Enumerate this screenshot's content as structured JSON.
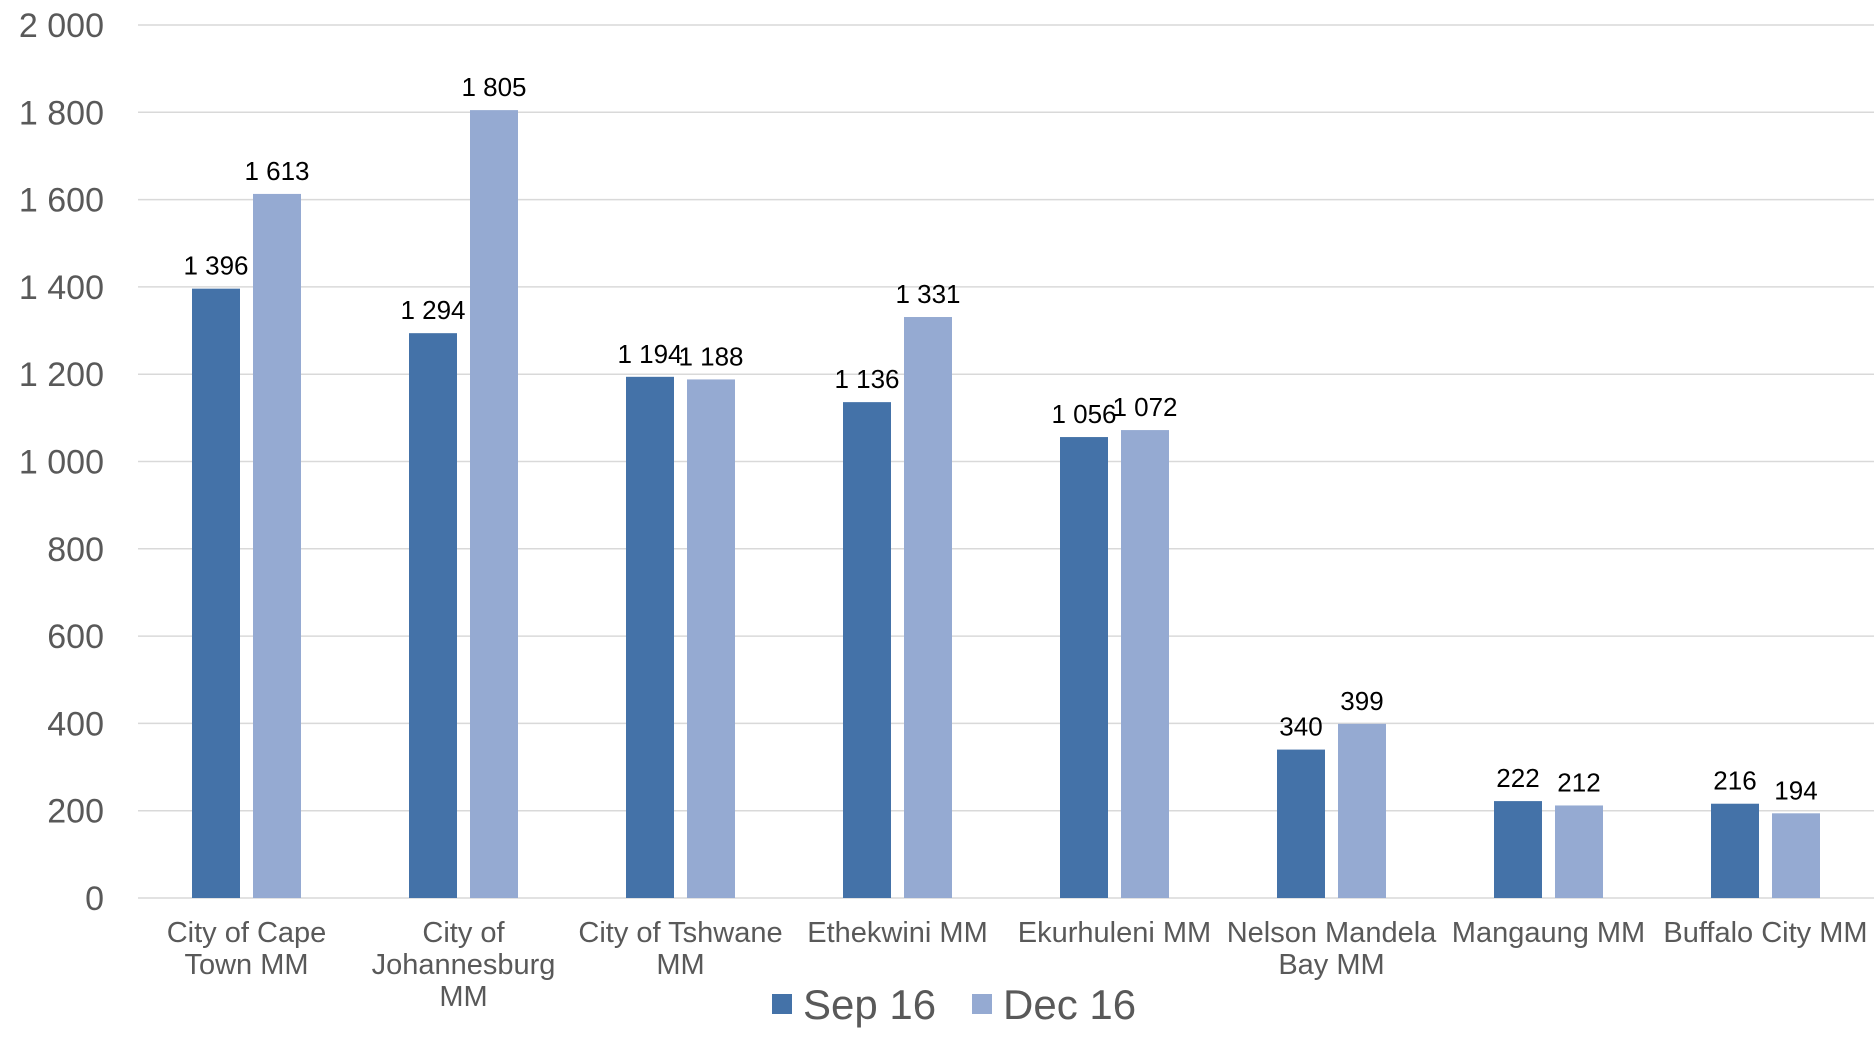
{
  "chart_data": {
    "type": "bar",
    "title": "",
    "xlabel": "",
    "ylabel": "",
    "ylim": [
      0,
      2000
    ],
    "yticks": [
      0,
      200,
      400,
      600,
      800,
      1000,
      1200,
      1400,
      1600,
      1800,
      2000
    ],
    "ytick_labels": [
      "0",
      "200",
      "400",
      "600",
      "800",
      "1 000",
      "1 200",
      "1 400",
      "1 600",
      "1 800",
      "2 000"
    ],
    "grid": true,
    "legend_position": "bottom",
    "categories": [
      [
        "City of Cape",
        "Town MM"
      ],
      [
        "City of",
        "Johannesburg",
        "MM"
      ],
      [
        "City of Tshwane",
        "MM"
      ],
      [
        "Ethekwini MM"
      ],
      [
        "Ekurhuleni MM"
      ],
      [
        "Nelson Mandela",
        "Bay MM"
      ],
      [
        "Mangaung MM"
      ],
      [
        "Buffalo City MM"
      ]
    ],
    "series": [
      {
        "name": "Sep 16",
        "color": "#4472a8",
        "values": [
          1396,
          1294,
          1194,
          1136,
          1056,
          340,
          222,
          216
        ],
        "labels": [
          "1 396",
          "1 294",
          "1 194",
          "1 136",
          "1 056",
          "340",
          "222",
          "216"
        ]
      },
      {
        "name": "Dec 16",
        "color": "#95aad2",
        "values": [
          1613,
          1805,
          1188,
          1331,
          1072,
          399,
          212,
          194
        ],
        "labels": [
          "1 613",
          "1 805",
          "1 188",
          "1 331",
          "1 072",
          "399",
          "212",
          "194"
        ]
      }
    ]
  }
}
